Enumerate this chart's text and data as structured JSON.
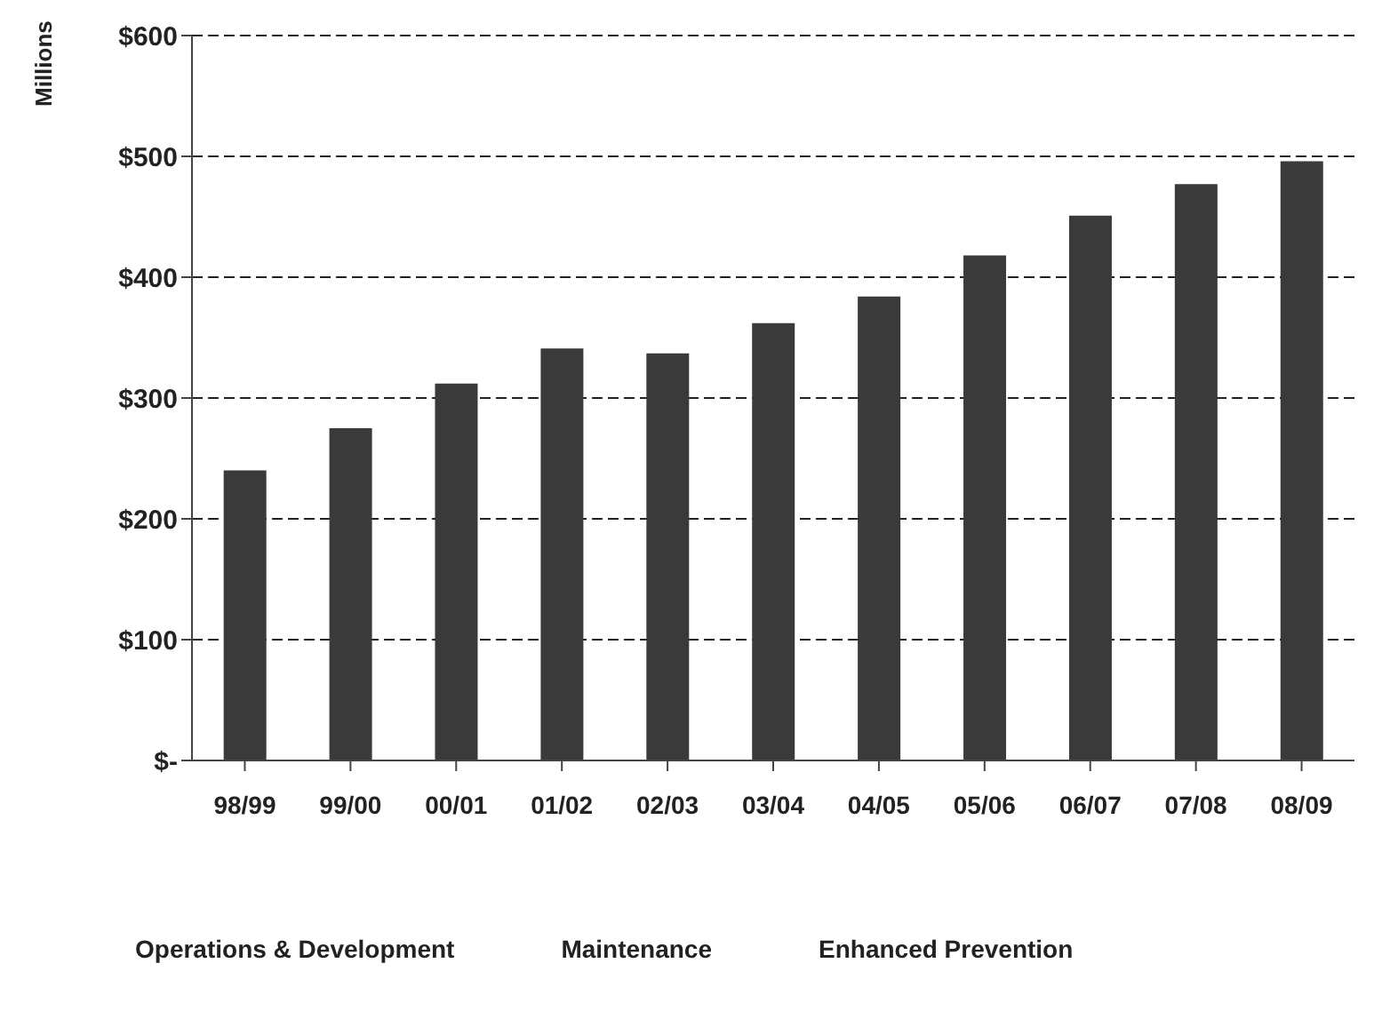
{
  "chart_data": {
    "type": "bar",
    "ylabel": "Millions",
    "categories": [
      "98/99",
      "99/00",
      "00/01",
      "01/02",
      "02/03",
      "03/04",
      "04/05",
      "05/06",
      "06/07",
      "07/08",
      "08/09"
    ],
    "values": [
      240,
      275,
      312,
      341,
      337,
      362,
      384,
      418,
      451,
      477,
      496
    ],
    "color": "#3a3a3a",
    "ylim": [
      0,
      600
    ],
    "yticks": [
      {
        "value": 0,
        "label": "$-"
      },
      {
        "value": 100,
        "label": "$100"
      },
      {
        "value": 200,
        "label": "$200"
      },
      {
        "value": 300,
        "label": "$300"
      },
      {
        "value": 400,
        "label": "$400"
      },
      {
        "value": 500,
        "label": "$500"
      },
      {
        "value": 600,
        "label": "$600"
      }
    ],
    "grid": "y",
    "annotations": [
      "Operations & Development",
      "Maintenance",
      "Enhanced Prevention"
    ]
  }
}
